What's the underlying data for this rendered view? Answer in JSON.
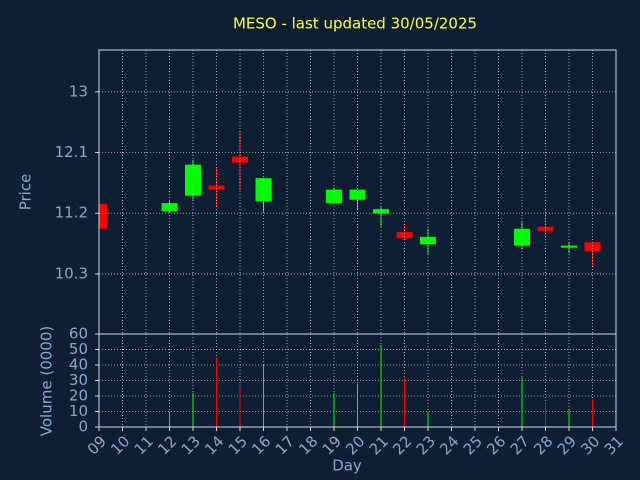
{
  "chart_data": [
    {
      "type": "candlestick",
      "title": "MESO - last updated 30/05/2025",
      "ylabel": "Price",
      "x": [
        9,
        12,
        13,
        14,
        15,
        16,
        19,
        20,
        21,
        22,
        23,
        27,
        28,
        29,
        30
      ],
      "open": [
        11.34,
        11.23,
        11.46,
        11.61,
        12.04,
        11.38,
        11.35,
        11.4,
        11.2,
        10.92,
        10.74,
        10.72,
        11.0,
        10.69,
        10.77
      ],
      "high": [
        11.34,
        11.38,
        11.99,
        11.87,
        12.41,
        11.72,
        11.58,
        11.55,
        11.29,
        11.04,
        10.97,
        11.07,
        11.28,
        10.77,
        10.77
      ],
      "low": [
        10.97,
        11.21,
        11.4,
        11.29,
        11.53,
        11.22,
        11.35,
        11.25,
        11.0,
        10.8,
        10.6,
        10.66,
        10.86,
        10.61,
        10.4
      ],
      "close": [
        10.97,
        11.35,
        11.92,
        11.55,
        11.95,
        11.72,
        11.55,
        11.55,
        11.26,
        10.83,
        10.85,
        10.97,
        10.94,
        10.72,
        10.64
      ],
      "up_color": "#00ff00",
      "down_color": "#ff0000",
      "xlim": [
        9,
        31
      ],
      "ylim": [
        9.41,
        13.62
      ],
      "yticks": [
        13,
        12.1,
        11.2,
        10.3
      ],
      "grid": true
    },
    {
      "type": "bar",
      "ylabel": "Volume (0000)",
      "xlabel": "Day",
      "x": [
        9,
        12,
        13,
        14,
        15,
        16,
        19,
        20,
        21,
        22,
        23,
        27,
        28,
        29,
        30
      ],
      "values": [
        null,
        10,
        22,
        45,
        26,
        40,
        22,
        28,
        53,
        32,
        10,
        32,
        16,
        11,
        18
      ],
      "xlim": [
        9,
        31
      ],
      "xticks": [
        {
          "value": 9,
          "label": "09"
        },
        10,
        11,
        12,
        13,
        14,
        15,
        16,
        17,
        18,
        19,
        20,
        21,
        22,
        23,
        24,
        25,
        26,
        27,
        28,
        29,
        30,
        31
      ],
      "ylim": [
        0,
        60
      ],
      "yticks": [
        0,
        10,
        20,
        30,
        40,
        50,
        60
      ],
      "grid": true
    }
  ]
}
